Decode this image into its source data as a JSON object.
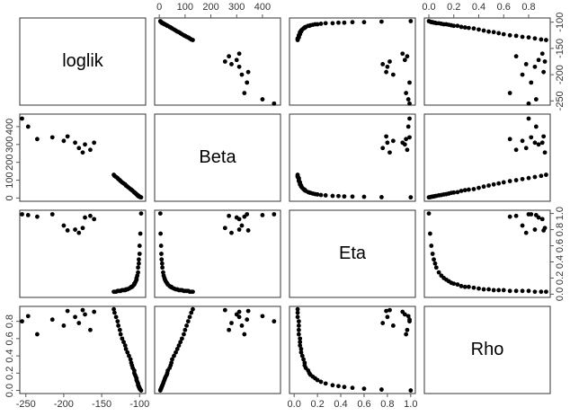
{
  "chart_data": {
    "type": "pairs",
    "point_color": "#000000",
    "variables": [
      {
        "name": "loglik",
        "lim": [
          -258,
          -92
        ],
        "ticks": [
          -250,
          -200,
          -150,
          -100
        ],
        "values": [
          -98,
          -99,
          -100,
          -100,
          -101,
          -101,
          -102,
          -102,
          -103,
          -104,
          -104,
          -105,
          -106,
          -107,
          -107,
          -109,
          -110,
          -111,
          -112,
          -114,
          -116,
          -118,
          -119,
          -121,
          -123,
          -125,
          -126,
          -128,
          -129,
          -131,
          -133,
          -134,
          -255,
          -247,
          -235,
          -215,
          -200,
          -195,
          -185,
          -180,
          -175,
          -172,
          -165,
          -160
        ]
      },
      {
        "name": "Beta",
        "lim": [
          -18,
          470
        ],
        "ticks": [
          0,
          100,
          200,
          300,
          400
        ],
        "values": [
          4,
          5,
          7,
          8,
          9,
          11,
          12,
          15,
          17,
          20,
          22,
          25,
          29,
          31,
          33,
          40,
          44,
          47,
          50,
          57,
          64,
          70,
          76,
          82,
          88,
          95,
          100,
          106,
          112,
          118,
          124,
          130,
          445,
          400,
          330,
          340,
          320,
          345,
          310,
          280,
          255,
          300,
          270,
          310
        ]
      },
      {
        "name": "Eta",
        "lim": [
          -0.04,
          1.04
        ],
        "ticks": [
          {
            "value": 0,
            "label": "0.0"
          },
          0.2,
          0.4,
          0.6,
          0.8,
          {
            "value": 1,
            "label": "1.0"
          }
        ],
        "values": [
          1.0,
          0.75,
          0.6,
          0.5,
          0.43,
          0.38,
          0.33,
          0.27,
          0.23,
          0.2,
          0.18,
          0.16,
          0.14,
          0.13,
          0.12,
          0.1,
          0.09,
          0.09,
          0.08,
          0.07,
          0.06,
          0.06,
          0.05,
          0.05,
          0.05,
          0.04,
          0.04,
          0.04,
          0.04,
          0.03,
          0.03,
          0.03,
          0.99,
          0.98,
          0.96,
          0.99,
          0.85,
          0.79,
          0.8,
          0.76,
          0.82,
          0.95,
          0.97,
          0.93
        ]
      },
      {
        "name": "Rho",
        "lim": [
          -0.036,
          0.973
        ],
        "ticks": [
          {
            "value": 0,
            "label": "0.0"
          },
          0.2,
          0.4,
          0.6,
          0.8
        ],
        "values": [
          0,
          0.01,
          0.02,
          0.03,
          0.04,
          0.05,
          0.06,
          0.08,
          0.1,
          0.12,
          0.14,
          0.16,
          0.18,
          0.2,
          0.23,
          0.26,
          0.29,
          0.32,
          0.36,
          0.4,
          0.44,
          0.48,
          0.52,
          0.56,
          0.6,
          0.65,
          0.7,
          0.75,
          0.8,
          0.85,
          0.9,
          0.94,
          0.8,
          0.86,
          0.65,
          0.82,
          0.75,
          0.92,
          0.85,
          0.78,
          0.93,
          0.88,
          0.7,
          0.91
        ]
      }
    ]
  }
}
